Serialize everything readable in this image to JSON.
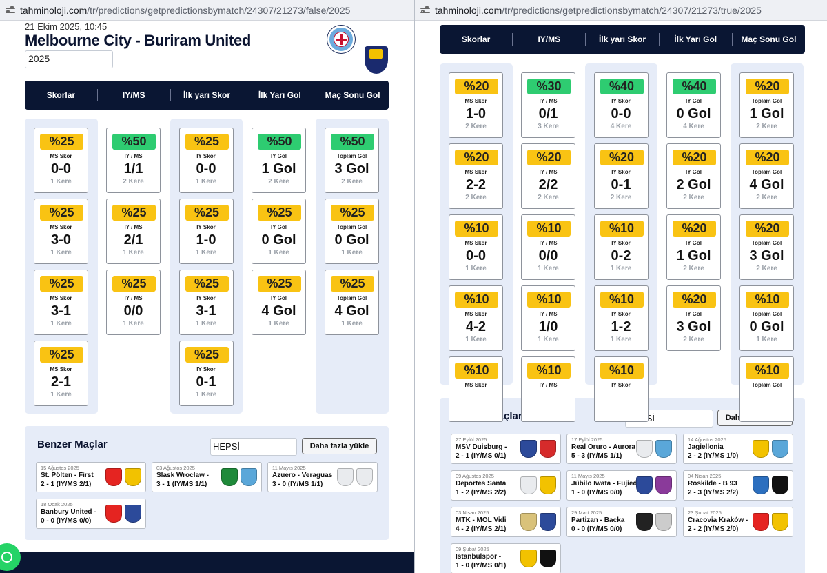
{
  "left": {
    "url_host": "tahminoloji.com",
    "url_path": "/tr/predictions/getpredictionsbymatch/24307/21273/false/2025",
    "date": "21 Ekim 2025, 10:45",
    "match_title": "Melbourne City - Buriram United",
    "year": "2025",
    "tabs": [
      "Skorlar",
      "IY/MS",
      "İlk yarı Skor",
      "İlk Yarı Gol",
      "Maç Sonu Gol"
    ],
    "columns": [
      {
        "cards": [
          {
            "pct": "%25",
            "color": "yellow",
            "label": "MS Skor",
            "value": "0-0",
            "count": "1 Kere"
          },
          {
            "pct": "%25",
            "color": "yellow",
            "label": "MS Skor",
            "value": "3-0",
            "count": "1 Kere"
          },
          {
            "pct": "%25",
            "color": "yellow",
            "label": "MS Skor",
            "value": "3-1",
            "count": "1 Kere"
          },
          {
            "pct": "%25",
            "color": "yellow",
            "label": "MS Skor",
            "value": "2-1",
            "count": "1 Kere"
          }
        ]
      },
      {
        "cards": [
          {
            "pct": "%50",
            "color": "green",
            "label": "IY / MS",
            "value": "1/1",
            "count": "2 Kere"
          },
          {
            "pct": "%25",
            "color": "yellow",
            "label": "IY / MS",
            "value": "2/1",
            "count": "1 Kere"
          },
          {
            "pct": "%25",
            "color": "yellow",
            "label": "IY / MS",
            "value": "0/0",
            "count": "1 Kere"
          }
        ]
      },
      {
        "cards": [
          {
            "pct": "%25",
            "color": "yellow",
            "label": "IY Skor",
            "value": "0-0",
            "count": "1 Kere"
          },
          {
            "pct": "%25",
            "color": "yellow",
            "label": "IY Skor",
            "value": "1-0",
            "count": "1 Kere"
          },
          {
            "pct": "%25",
            "color": "yellow",
            "label": "IY Skor",
            "value": "3-1",
            "count": "1 Kere"
          },
          {
            "pct": "%25",
            "color": "yellow",
            "label": "IY Skor",
            "value": "0-1",
            "count": "1 Kere"
          }
        ]
      },
      {
        "cards": [
          {
            "pct": "%50",
            "color": "green",
            "label": "IY Gol",
            "value": "1 Gol",
            "count": "2 Kere"
          },
          {
            "pct": "%25",
            "color": "yellow",
            "label": "IY Gol",
            "value": "0 Gol",
            "count": "1 Kere"
          },
          {
            "pct": "%25",
            "color": "yellow",
            "label": "IY Gol",
            "value": "4 Gol",
            "count": "1 Kere"
          }
        ]
      },
      {
        "cards": [
          {
            "pct": "%50",
            "color": "green",
            "label": "Toplam Gol",
            "value": "3 Gol",
            "count": "2 Kere"
          },
          {
            "pct": "%25",
            "color": "yellow",
            "label": "Toplam Gol",
            "value": "0 Gol",
            "count": "1 Kere"
          },
          {
            "pct": "%25",
            "color": "yellow",
            "label": "Toplam Gol",
            "value": "4 Gol",
            "count": "1 Kere"
          }
        ]
      }
    ],
    "similar": {
      "title": "Benzer Maçlar",
      "filter": "HEPSİ",
      "more": "Daha fazla yükle",
      "matches": [
        {
          "date": "15 Ağustos 2025",
          "name": "St. Pölten - First",
          "score": "2 - 1 (IY/MS 2/1)",
          "colors": [
            "#e52421",
            "#f2c200"
          ]
        },
        {
          "date": "03 Ağustos 2025",
          "name": "Slask Wroclaw - ",
          "score": "3 - 1 (IY/MS 1/1)",
          "colors": [
            "#1f8a3a",
            "#5aa7d9"
          ]
        },
        {
          "date": "11 Mayıs 2025",
          "name": "Azuero - Veraguas",
          "score": "3 - 0 (IY/MS 1/1)",
          "colors": [
            "#e9ebee",
            "#e9ebee"
          ]
        },
        {
          "date": "18 Ocak 2025",
          "name": "Banbury United - ",
          "score": "0 - 0 (IY/MS 0/0)",
          "colors": [
            "#e52421",
            "#2c4a9a"
          ]
        }
      ]
    }
  },
  "right": {
    "url_host": "tahminoloji.com",
    "url_path": "/tr/predictions/getpredictionsbymatch/24307/21273/true/2025",
    "tabs": [
      "Skorlar",
      "IY/MS",
      "İlk yarı Skor",
      "İlk Yarı Gol",
      "Maç Sonu Gol"
    ],
    "columns": [
      {
        "cards": [
          {
            "pct": "%20",
            "color": "yellow",
            "label": "MS Skor",
            "value": "1-0",
            "count": "2 Kere"
          },
          {
            "pct": "%20",
            "color": "yellow",
            "label": "MS Skor",
            "value": "2-2",
            "count": "2 Kere"
          },
          {
            "pct": "%10",
            "color": "yellow",
            "label": "MS Skor",
            "value": "0-0",
            "count": "1 Kere"
          },
          {
            "pct": "%10",
            "color": "yellow",
            "label": "MS Skor",
            "value": "4-2",
            "count": "1 Kere"
          },
          {
            "pct": "%10",
            "color": "yellow",
            "label": "MS Skor",
            "value": "",
            "count": ""
          }
        ]
      },
      {
        "cards": [
          {
            "pct": "%30",
            "color": "green",
            "label": "IY / MS",
            "value": "0/1",
            "count": "3 Kere"
          },
          {
            "pct": "%20",
            "color": "yellow",
            "label": "IY / MS",
            "value": "2/2",
            "count": "2 Kere"
          },
          {
            "pct": "%10",
            "color": "yellow",
            "label": "IY / MS",
            "value": "0/0",
            "count": "1 Kere"
          },
          {
            "pct": "%10",
            "color": "yellow",
            "label": "IY / MS",
            "value": "1/0",
            "count": "1 Kere"
          },
          {
            "pct": "%10",
            "color": "yellow",
            "label": "IY / MS",
            "value": "",
            "count": ""
          }
        ]
      },
      {
        "cards": [
          {
            "pct": "%40",
            "color": "green",
            "label": "IY Skor",
            "value": "0-0",
            "count": "4 Kere"
          },
          {
            "pct": "%20",
            "color": "yellow",
            "label": "IY Skor",
            "value": "0-1",
            "count": "2 Kere"
          },
          {
            "pct": "%10",
            "color": "yellow",
            "label": "IY Skor",
            "value": "0-2",
            "count": "1 Kere"
          },
          {
            "pct": "%10",
            "color": "yellow",
            "label": "IY Skor",
            "value": "1-2",
            "count": "1 Kere"
          },
          {
            "pct": "%10",
            "color": "yellow",
            "label": "IY Skor",
            "value": "",
            "count": ""
          }
        ]
      },
      {
        "cards": [
          {
            "pct": "%40",
            "color": "green",
            "label": "IY Gol",
            "value": "0 Gol",
            "count": "4 Kere"
          },
          {
            "pct": "%20",
            "color": "yellow",
            "label": "IY Gol",
            "value": "2 Gol",
            "count": "2 Kere"
          },
          {
            "pct": "%20",
            "color": "yellow",
            "label": "IY Gol",
            "value": "1 Gol",
            "count": "2 Kere"
          },
          {
            "pct": "%20",
            "color": "yellow",
            "label": "IY Gol",
            "value": "3 Gol",
            "count": "2 Kere"
          }
        ]
      },
      {
        "cards": [
          {
            "pct": "%20",
            "color": "yellow",
            "label": "Toplam Gol",
            "value": "1 Gol",
            "count": "2 Kere"
          },
          {
            "pct": "%20",
            "color": "yellow",
            "label": "Toplam Gol",
            "value": "4 Gol",
            "count": "2 Kere"
          },
          {
            "pct": "%20",
            "color": "yellow",
            "label": "Toplam Gol",
            "value": "3 Gol",
            "count": "2 Kere"
          },
          {
            "pct": "%10",
            "color": "yellow",
            "label": "Toplam Gol",
            "value": "0 Gol",
            "count": "1 Kere"
          },
          {
            "pct": "%10",
            "color": "yellow",
            "label": "Toplam Gol",
            "value": "",
            "count": ""
          }
        ]
      }
    ],
    "similar": {
      "title": "Benzer Maçlar",
      "filter": "HEPSİ",
      "more": "Daha fazla yükle",
      "matches": [
        {
          "date": "27 Eylül 2025",
          "name": "MSV Duisburg - ",
          "score": "2 - 1 (IY/MS 0/1)",
          "colors": [
            "#2c4a9a",
            "#d62b2b"
          ]
        },
        {
          "date": "17 Eylül 2025",
          "name": "Real Oruro - Aurora",
          "score": "5 - 3 (IY/MS 1/1)",
          "colors": [
            "#e9ebee",
            "#5aa7d9"
          ]
        },
        {
          "date": "14 Ağustos 2025",
          "name": "Jagiellonia",
          "score": "2 - 2 (IY/MS 1/0)",
          "colors": [
            "#f2c200",
            "#5aa7d9"
          ]
        },
        {
          "date": "09 Ağustos 2025",
          "name": "Deportes Santa",
          "score": "1 - 2 (IY/MS 2/2)",
          "colors": [
            "#e9ebee",
            "#f2c200"
          ]
        },
        {
          "date": "11 Mayıs 2025",
          "name": "Júbilo Iwata - Fujieda",
          "score": "1 - 0 (IY/MS 0/0)",
          "colors": [
            "#2c4a9a",
            "#8a3a9a"
          ]
        },
        {
          "date": "04 Nisan 2025",
          "name": "Roskilde - B 93",
          "score": "2 - 3 (IY/MS 2/2)",
          "colors": [
            "#2c6fbf",
            "#111111"
          ]
        },
        {
          "date": "03 Nisan 2025",
          "name": "MTK - MOL Vidi",
          "score": "4 - 2 (IY/MS 2/1)",
          "colors": [
            "#d9c27a",
            "#2c4a9a"
          ]
        },
        {
          "date": "29 Mart 2025",
          "name": "Partizan - Backa",
          "score": "0 - 0 (IY/MS 0/0)",
          "colors": [
            "#222222",
            "#cccccc"
          ]
        },
        {
          "date": "23 Şubat 2025",
          "name": "Cracovia Kraków - ",
          "score": "2 - 2 (IY/MS 2/0)",
          "colors": [
            "#e52421",
            "#f2c200"
          ]
        },
        {
          "date": "09 Şubat 2025",
          "name": "Istanbulspor - ",
          "score": "1 - 0 (IY/MS 0/1)",
          "colors": [
            "#f2c200",
            "#111111"
          ]
        }
      ]
    }
  }
}
